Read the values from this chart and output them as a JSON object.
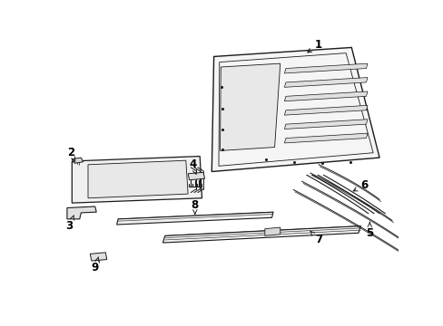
{
  "background_color": "#ffffff",
  "line_color": "#1a1a1a",
  "figsize": [
    4.89,
    3.6
  ],
  "dpi": 100,
  "label_fontsize": 8.5
}
